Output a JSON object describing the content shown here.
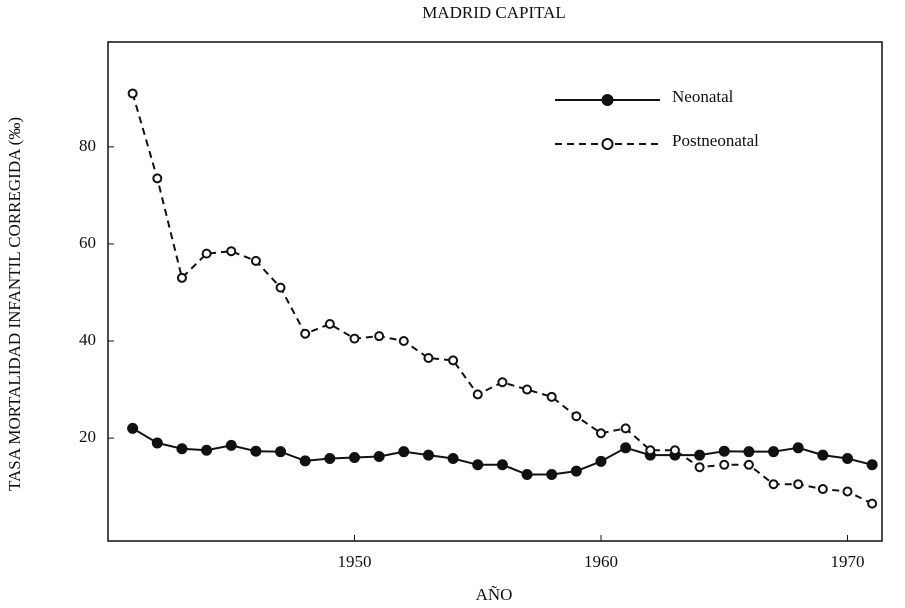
{
  "chart_data": {
    "type": "line",
    "title": "MADRID CAPITAL",
    "xlabel": "AÑO",
    "ylabel": "TASA MORTALIDAD INFANTIL CORREGIDA (‰)",
    "x": [
      1941,
      1942,
      1943,
      1944,
      1945,
      1946,
      1947,
      1948,
      1949,
      1950,
      1951,
      1952,
      1953,
      1954,
      1955,
      1956,
      1957,
      1958,
      1959,
      1960,
      1961,
      1962,
      1963,
      1964,
      1965,
      1966,
      1967,
      1968,
      1969,
      1970,
      1971
    ],
    "series": [
      {
        "name": "Neonatal",
        "color": "#111111",
        "style": "solid",
        "marker": "filled",
        "values": [
          22,
          19,
          17.8,
          17.5,
          18.5,
          17.3,
          17.2,
          15.3,
          15.8,
          16,
          16.2,
          17.2,
          16.5,
          15.8,
          14.5,
          14.5,
          12.5,
          12.5,
          13.2,
          15.2,
          18,
          16.5,
          16.5,
          16.5,
          17.3,
          17.2,
          17.2,
          18,
          16.5,
          15.8,
          14.5
        ]
      },
      {
        "name": "Postneonatal",
        "color": "#111111",
        "style": "dashed",
        "marker": "open",
        "values": [
          91,
          73.5,
          53,
          58,
          58.5,
          56.5,
          51,
          41.5,
          43.5,
          40.5,
          41,
          40,
          36.5,
          36,
          29,
          31.5,
          30,
          28.5,
          24.5,
          21,
          22,
          17.5,
          17.5,
          14,
          14.5,
          14.5,
          10.5,
          10.5,
          9.5,
          9,
          6.5
        ]
      }
    ],
    "xlim": [
      1940,
      1971.4
    ],
    "xticks": [
      1950,
      1960,
      1970
    ],
    "ylim": [
      -1.2,
      101.6
    ],
    "yticks": [
      20,
      40,
      60,
      80
    ],
    "grid": false,
    "legend": "upper right"
  }
}
